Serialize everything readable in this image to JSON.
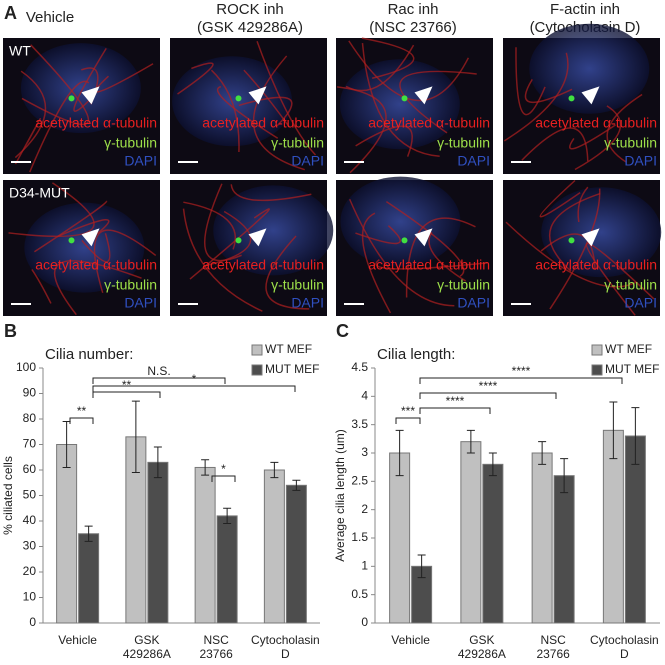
{
  "panel_a": {
    "label": "A",
    "columns": [
      {
        "title": "Vehicle"
      },
      {
        "title": "ROCK inh",
        "subtitle": "(GSK 429286A)"
      },
      {
        "title": "Rac inh",
        "subtitle": "(NSC 23766)"
      },
      {
        "title": "F-actin inh",
        "subtitle": "(Cytocholasin D)"
      }
    ],
    "rows": [
      "WT",
      "D34-MUT"
    ],
    "stains": [
      "acetylated α-tubulin",
      "γ-tubulin",
      "DAPI"
    ]
  },
  "chart_data": [
    {
      "type": "bar",
      "panel": "B",
      "title": "Cilia number:",
      "y_label": "% ciliated cells",
      "categories": [
        "Vehicle",
        "GSK 429286A",
        "NSC 23766",
        "Cytocholasin D"
      ],
      "series": [
        {
          "name": "WT MEF",
          "color": "#c0c0c0",
          "values": [
            70,
            73,
            61,
            60
          ],
          "errors": [
            9,
            14,
            3,
            3
          ]
        },
        {
          "name": "MUT MEF",
          "color": "#4d4d4d",
          "values": [
            35,
            63,
            42,
            54
          ],
          "errors": [
            3,
            6,
            3,
            2
          ]
        }
      ],
      "ylim": [
        0,
        100
      ],
      "yticks": [
        0,
        10,
        20,
        30,
        40,
        50,
        60,
        70,
        80,
        90,
        100
      ],
      "annotations": [
        "**",
        "**",
        "N.S.",
        "*",
        "*"
      ],
      "legend": "top-right"
    },
    {
      "type": "bar",
      "panel": "C",
      "title": "Cilia length:",
      "y_label": "Average cilia length (um)",
      "categories": [
        "Vehicle",
        "GSK 429286A",
        "NSC 23766",
        "Cytocholasin D"
      ],
      "series": [
        {
          "name": "WT MEF",
          "color": "#c0c0c0",
          "values": [
            3.0,
            3.2,
            3.0,
            3.4
          ],
          "errors": [
            0.4,
            0.2,
            0.2,
            0.5
          ]
        },
        {
          "name": "MUT MEF",
          "color": "#4d4d4d",
          "values": [
            1.0,
            2.8,
            2.6,
            3.3
          ],
          "errors": [
            0.2,
            0.2,
            0.3,
            0.5
          ]
        }
      ],
      "ylim": [
        0,
        4.5
      ],
      "yticks": [
        0,
        0.5,
        1,
        1.5,
        2,
        2.5,
        3,
        3.5,
        4,
        4.5
      ],
      "annotations": [
        "***",
        "****",
        "****",
        "****"
      ],
      "legend": "top-right"
    }
  ]
}
